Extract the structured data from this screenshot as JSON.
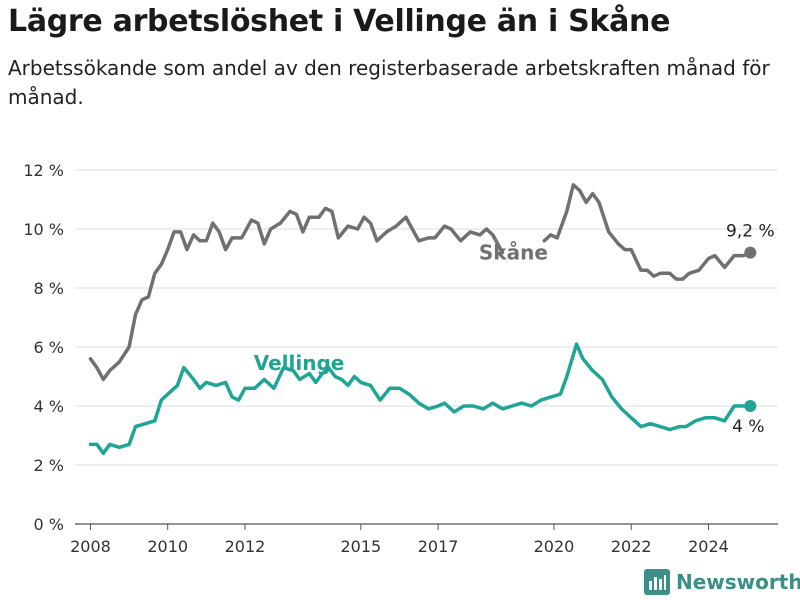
{
  "header": {
    "title": "Lägre arbetslöshet i Vellinge än i Skåne",
    "subtitle": "Arbetssökande som andel av den registerbaserade arbetskraften månad för månad."
  },
  "brand": {
    "name": "Newsworthy",
    "color": "#3b8f86"
  },
  "chart_data": {
    "type": "line",
    "title": "Lägre arbetslöshet i Vellinge än i Skåne",
    "subtitle": "Arbetssökande som andel av den registerbaserade arbetskraften månad för månad.",
    "xlabel": "",
    "ylabel": "",
    "ylim": [
      0,
      12
    ],
    "grid": true,
    "y_ticks": [
      "0 %",
      "2 %",
      "4 %",
      "6 %",
      "8 %",
      "10 %",
      "12 %"
    ],
    "x_ticks": [
      "2008",
      "2010",
      "2012",
      "2015",
      "2017",
      "2020",
      "2022",
      "2024"
    ],
    "series": [
      {
        "name": "Skåne",
        "color": "#707070",
        "end_label": "9,2 %",
        "points": [
          [
            "2008-01",
            5.6
          ],
          [
            "2008-03",
            5.3
          ],
          [
            "2008-05",
            4.9
          ],
          [
            "2008-07",
            5.2
          ],
          [
            "2008-10",
            5.5
          ],
          [
            "2009-01",
            6.0
          ],
          [
            "2009-03",
            7.1
          ],
          [
            "2009-05",
            7.6
          ],
          [
            "2009-07",
            7.7
          ],
          [
            "2009-09",
            8.5
          ],
          [
            "2009-11",
            8.8
          ],
          [
            "2010-01",
            9.3
          ],
          [
            "2010-03",
            9.9
          ],
          [
            "2010-05",
            9.9
          ],
          [
            "2010-07",
            9.3
          ],
          [
            "2010-09",
            9.8
          ],
          [
            "2010-11",
            9.6
          ],
          [
            "2011-01",
            9.6
          ],
          [
            "2011-03",
            10.2
          ],
          [
            "2011-05",
            9.9
          ],
          [
            "2011-07",
            9.3
          ],
          [
            "2011-09",
            9.7
          ],
          [
            "2011-12",
            9.7
          ],
          [
            "2012-03",
            10.3
          ],
          [
            "2012-05",
            10.2
          ],
          [
            "2012-07",
            9.5
          ],
          [
            "2012-09",
            10.0
          ],
          [
            "2012-12",
            10.2
          ],
          [
            "2013-03",
            10.6
          ],
          [
            "2013-05",
            10.5
          ],
          [
            "2013-07",
            9.9
          ],
          [
            "2013-09",
            10.4
          ],
          [
            "2013-12",
            10.4
          ],
          [
            "2014-02",
            10.7
          ],
          [
            "2014-04",
            10.6
          ],
          [
            "2014-06",
            9.7
          ],
          [
            "2014-09",
            10.1
          ],
          [
            "2014-12",
            10.0
          ],
          [
            "2015-02",
            10.4
          ],
          [
            "2015-04",
            10.2
          ],
          [
            "2015-06",
            9.6
          ],
          [
            "2015-09",
            9.9
          ],
          [
            "2015-12",
            10.1
          ],
          [
            "2016-03",
            10.4
          ],
          [
            "2016-05",
            10.0
          ],
          [
            "2016-07",
            9.6
          ],
          [
            "2016-10",
            9.7
          ],
          [
            "2016-12",
            9.7
          ],
          [
            "2017-03",
            10.1
          ],
          [
            "2017-05",
            10.0
          ],
          [
            "2017-08",
            9.6
          ],
          [
            "2017-11",
            9.9
          ],
          [
            "2018-02",
            9.8
          ],
          [
            "2018-04",
            10.0
          ],
          [
            "2018-06",
            9.8
          ],
          [
            "2018-09",
            9.2
          ]
        ],
        "points_2": [
          [
            "2019-10",
            9.6
          ],
          [
            "2019-12",
            9.8
          ],
          [
            "2020-02",
            9.7
          ],
          [
            "2020-05",
            10.6
          ],
          [
            "2020-07",
            11.5
          ],
          [
            "2020-09",
            11.3
          ],
          [
            "2020-11",
            10.9
          ],
          [
            "2021-01",
            11.2
          ],
          [
            "2021-03",
            10.9
          ],
          [
            "2021-06",
            9.9
          ],
          [
            "2021-09",
            9.5
          ],
          [
            "2021-11",
            9.3
          ],
          [
            "2022-01",
            9.3
          ],
          [
            "2022-04",
            8.6
          ],
          [
            "2022-06",
            8.6
          ],
          [
            "2022-08",
            8.4
          ],
          [
            "2022-10",
            8.5
          ],
          [
            "2023-01",
            8.5
          ],
          [
            "2023-03",
            8.3
          ],
          [
            "2023-05",
            8.3
          ],
          [
            "2023-07",
            8.5
          ],
          [
            "2023-10",
            8.6
          ],
          [
            "2024-01",
            9.0
          ],
          [
            "2024-03",
            9.1
          ],
          [
            "2024-06",
            8.7
          ],
          [
            "2024-09",
            9.1
          ],
          [
            "2024-12",
            9.1
          ],
          [
            "2025-02",
            9.2
          ]
        ]
      },
      {
        "name": "Vellinge",
        "color": "#1fa596",
        "end_label": "4 %",
        "points": [
          [
            "2008-01",
            2.7
          ],
          [
            "2008-03",
            2.7
          ],
          [
            "2008-05",
            2.4
          ],
          [
            "2008-07",
            2.7
          ],
          [
            "2008-10",
            2.6
          ],
          [
            "2009-01",
            2.7
          ],
          [
            "2009-03",
            3.3
          ],
          [
            "2009-06",
            3.4
          ],
          [
            "2009-09",
            3.5
          ],
          [
            "2009-11",
            4.2
          ],
          [
            "2010-01",
            4.4
          ],
          [
            "2010-04",
            4.7
          ],
          [
            "2010-06",
            5.3
          ],
          [
            "2010-09",
            4.9
          ],
          [
            "2010-11",
            4.6
          ],
          [
            "2011-01",
            4.8
          ],
          [
            "2011-04",
            4.7
          ],
          [
            "2011-07",
            4.8
          ],
          [
            "2011-09",
            4.3
          ],
          [
            "2011-11",
            4.2
          ],
          [
            "2012-01",
            4.6
          ],
          [
            "2012-04",
            4.6
          ],
          [
            "2012-07",
            4.9
          ],
          [
            "2012-10",
            4.6
          ],
          [
            "2013-01",
            5.3
          ],
          [
            "2013-04",
            5.2
          ],
          [
            "2013-06",
            4.9
          ],
          [
            "2013-09",
            5.1
          ],
          [
            "2013-11",
            4.8
          ],
          [
            "2014-01",
            5.1
          ],
          [
            "2014-03",
            5.3
          ],
          [
            "2014-05",
            5.0
          ],
          [
            "2014-07",
            4.9
          ],
          [
            "2014-09",
            4.7
          ],
          [
            "2014-11",
            5.0
          ],
          [
            "2015-01",
            4.8
          ],
          [
            "2015-04",
            4.7
          ],
          [
            "2015-07",
            4.2
          ],
          [
            "2015-10",
            4.6
          ],
          [
            "2016-01",
            4.6
          ],
          [
            "2016-04",
            4.4
          ],
          [
            "2016-07",
            4.1
          ],
          [
            "2016-10",
            3.9
          ],
          [
            "2017-01",
            4.0
          ],
          [
            "2017-03",
            4.1
          ],
          [
            "2017-06",
            3.8
          ],
          [
            "2017-09",
            4.0
          ],
          [
            "2017-12",
            4.0
          ],
          [
            "2018-03",
            3.9
          ],
          [
            "2018-06",
            4.1
          ],
          [
            "2018-09",
            3.9
          ],
          [
            "2018-12",
            4.0
          ],
          [
            "2019-03",
            4.1
          ],
          [
            "2019-06",
            4.0
          ],
          [
            "2019-09",
            4.2
          ],
          [
            "2019-12",
            4.3
          ],
          [
            "2020-03",
            4.4
          ],
          [
            "2020-05",
            5.0
          ],
          [
            "2020-08",
            6.1
          ],
          [
            "2020-10",
            5.6
          ],
          [
            "2021-01",
            5.2
          ],
          [
            "2021-04",
            4.9
          ],
          [
            "2021-07",
            4.3
          ],
          [
            "2021-10",
            3.9
          ],
          [
            "2022-01",
            3.6
          ],
          [
            "2022-04",
            3.3
          ],
          [
            "2022-07",
            3.4
          ],
          [
            "2022-10",
            3.3
          ],
          [
            "2023-01",
            3.2
          ],
          [
            "2023-04",
            3.3
          ],
          [
            "2023-06",
            3.3
          ],
          [
            "2023-09",
            3.5
          ],
          [
            "2023-12",
            3.6
          ],
          [
            "2024-03",
            3.6
          ],
          [
            "2024-06",
            3.5
          ],
          [
            "2024-09",
            4.0
          ],
          [
            "2024-12",
            4.0
          ],
          [
            "2025-02",
            4.0
          ]
        ]
      }
    ]
  }
}
